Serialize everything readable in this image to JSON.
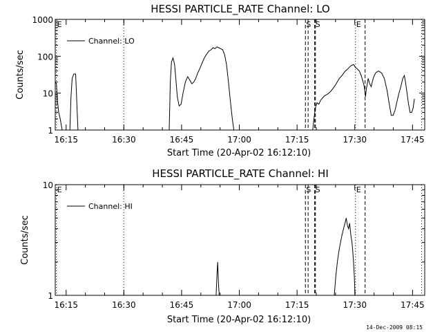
{
  "footer": {
    "stamp": "14-Dec-2009 08:15"
  },
  "chart_data": [
    {
      "type": "line",
      "title": "HESSI PARTICLE_RATE Channel: LO",
      "xlabel": "Start Time (20-Apr-02 16:12:10)",
      "ylabel": "Counts/sec",
      "yscale": "log",
      "ylim": [
        1,
        1000
      ],
      "xlim_minutes": [
        0,
        96
      ],
      "xticks": [
        {
          "label": "16:15",
          "t": 2.83
        },
        {
          "label": "16:30",
          "t": 17.83
        },
        {
          "label": "16:45",
          "t": 32.83
        },
        {
          "label": "17:00",
          "t": 47.83
        },
        {
          "label": "17:15",
          "t": 62.83
        },
        {
          "label": "17:30",
          "t": 77.83
        },
        {
          "label": "17:45",
          "t": 92.83
        }
      ],
      "yticks": [
        {
          "label": "1",
          "v": 1
        },
        {
          "label": "10",
          "v": 10
        },
        {
          "label": "100",
          "v": 100
        },
        {
          "label": "1000",
          "v": 1000
        }
      ],
      "legend": {
        "label": "Channel: LO",
        "position": "top-left"
      },
      "markers": [
        {
          "label": "E",
          "t": 0.3,
          "style": "dotted",
          "text": true
        },
        {
          "label": "",
          "t": 17.8,
          "style": "dotted",
          "text": false
        },
        {
          "label": "S",
          "t": 65.0,
          "style": "dashed",
          "text": true
        },
        {
          "label": "",
          "t": 65.7,
          "style": "dashed",
          "text": false
        },
        {
          "label": "S",
          "t": 67.4,
          "style": "dashed",
          "text": true
        },
        {
          "label": "",
          "t": 67.6,
          "style": "dashed",
          "text": false
        },
        {
          "label": "E",
          "t": 78.0,
          "style": "dotted",
          "text": true
        },
        {
          "label": "",
          "t": 80.5,
          "style": "dashed",
          "text": false
        },
        {
          "label": "",
          "t": 95.2,
          "style": "dotted",
          "text": false
        }
      ],
      "segments": [
        [
          [
            0,
            20
          ],
          [
            0.3,
            18
          ],
          [
            0.6,
            6
          ],
          [
            0.9,
            3
          ],
          [
            1.3,
            2
          ],
          [
            1.8,
            1
          ]
        ],
        [
          [
            3.8,
            1
          ],
          [
            4.1,
            8
          ],
          [
            4.4,
            25
          ],
          [
            4.8,
            33
          ],
          [
            5.3,
            33
          ],
          [
            5.5,
            10
          ],
          [
            5.7,
            3
          ],
          [
            5.9,
            1
          ]
        ],
        [
          [
            29.6,
            1
          ],
          [
            29.9,
            20
          ],
          [
            30.2,
            70
          ],
          [
            30.6,
            90
          ],
          [
            31.0,
            60
          ],
          [
            31.4,
            20
          ],
          [
            31.7,
            8
          ],
          [
            32.2,
            4.5
          ],
          [
            32.7,
            5
          ],
          [
            33.2,
            10
          ],
          [
            33.8,
            20
          ],
          [
            34.4,
            28
          ],
          [
            35.0,
            22
          ],
          [
            35.5,
            18
          ],
          [
            36.0,
            20
          ],
          [
            36.5,
            25
          ],
          [
            37.0,
            35
          ],
          [
            37.5,
            45
          ],
          [
            38.0,
            60
          ],
          [
            38.5,
            80
          ],
          [
            39.0,
            100
          ],
          [
            39.5,
            120
          ],
          [
            40.0,
            140
          ],
          [
            40.5,
            150
          ],
          [
            41.0,
            170
          ],
          [
            41.5,
            160
          ],
          [
            42.0,
            180
          ],
          [
            42.5,
            170
          ],
          [
            43.0,
            160
          ],
          [
            43.5,
            150
          ],
          [
            44.0,
            110
          ],
          [
            44.5,
            60
          ],
          [
            45.0,
            20
          ],
          [
            45.5,
            6
          ],
          [
            46.0,
            2
          ],
          [
            46.4,
            1
          ]
        ],
        [
          [
            66.9,
            1
          ],
          [
            67.2,
            2
          ],
          [
            67.6,
            4
          ],
          [
            68.0,
            5.5
          ],
          [
            68.5,
            5
          ],
          [
            69.0,
            6.5
          ],
          [
            69.5,
            7.5
          ],
          [
            70.0,
            8.5
          ],
          [
            70.8,
            9.5
          ],
          [
            71.5,
            11
          ],
          [
            72.3,
            14
          ],
          [
            73.0,
            18
          ],
          [
            73.8,
            25
          ],
          [
            74.5,
            30
          ],
          [
            75.2,
            38
          ],
          [
            76.0,
            45
          ],
          [
            76.8,
            55
          ],
          [
            77.5,
            60
          ],
          [
            78.0,
            50
          ],
          [
            78.5,
            45
          ],
          [
            79.0,
            40
          ],
          [
            79.5,
            30
          ],
          [
            80.0,
            20
          ],
          [
            80.3,
            15
          ],
          [
            80.6,
            8
          ],
          [
            80.9,
            14
          ],
          [
            81.3,
            25
          ],
          [
            81.7,
            18
          ],
          [
            82.1,
            15
          ],
          [
            82.6,
            25
          ],
          [
            83.2,
            35
          ],
          [
            84.0,
            40
          ],
          [
            84.8,
            35
          ],
          [
            85.5,
            25
          ],
          [
            86.2,
            12
          ],
          [
            86.8,
            5
          ],
          [
            87.3,
            2.5
          ],
          [
            87.8,
            2.5
          ],
          [
            88.3,
            3.5
          ],
          [
            88.8,
            6
          ],
          [
            89.3,
            10
          ],
          [
            89.8,
            15
          ],
          [
            90.3,
            25
          ],
          [
            90.7,
            30
          ],
          [
            91.0,
            20
          ],
          [
            91.4,
            10
          ],
          [
            91.8,
            5
          ],
          [
            92.2,
            3
          ],
          [
            92.6,
            3
          ],
          [
            93.0,
            4
          ],
          [
            93.3,
            7
          ]
        ]
      ]
    },
    {
      "type": "line",
      "title": "HESSI PARTICLE_RATE Channel: HI",
      "xlabel": "Start Time (20-Apr-02 16:12:10)",
      "ylabel": "Counts/sec",
      "yscale": "log",
      "ylim": [
        1,
        10
      ],
      "xlim_minutes": [
        0,
        96
      ],
      "xticks": [
        {
          "label": "16:15",
          "t": 2.83
        },
        {
          "label": "16:30",
          "t": 17.83
        },
        {
          "label": "16:45",
          "t": 32.83
        },
        {
          "label": "17:00",
          "t": 47.83
        },
        {
          "label": "17:15",
          "t": 62.83
        },
        {
          "label": "17:30",
          "t": 77.83
        },
        {
          "label": "17:45",
          "t": 92.83
        }
      ],
      "yticks": [
        {
          "label": "1",
          "v": 1
        },
        {
          "label": "10",
          "v": 10
        }
      ],
      "legend": {
        "label": "Channel: HI",
        "position": "top-left"
      },
      "markers": [
        {
          "label": "E",
          "t": 0.3,
          "style": "dotted",
          "text": true
        },
        {
          "label": "",
          "t": 17.8,
          "style": "dotted",
          "text": false
        },
        {
          "label": "S",
          "t": 65.0,
          "style": "dashed",
          "text": true
        },
        {
          "label": "",
          "t": 65.7,
          "style": "dashed",
          "text": false
        },
        {
          "label": "S",
          "t": 67.4,
          "style": "dashed",
          "text": true
        },
        {
          "label": "",
          "t": 67.6,
          "style": "dashed",
          "text": false
        },
        {
          "label": "E",
          "t": 78.0,
          "style": "dotted",
          "text": true
        },
        {
          "label": "",
          "t": 80.5,
          "style": "dashed",
          "text": false
        },
        {
          "label": "",
          "t": 95.2,
          "style": "dotted",
          "text": false
        }
      ],
      "segments": [
        [
          [
            41.8,
            1
          ],
          [
            42.0,
            1.5
          ],
          [
            42.2,
            2
          ],
          [
            42.4,
            1.3
          ],
          [
            42.6,
            1
          ]
        ],
        [
          [
            72.5,
            1
          ],
          [
            72.9,
            1.5
          ],
          [
            73.3,
            2
          ],
          [
            73.7,
            2.5
          ],
          [
            74.1,
            3
          ],
          [
            74.5,
            3.5
          ],
          [
            74.9,
            4
          ],
          [
            75.3,
            4.5
          ],
          [
            75.6,
            5
          ],
          [
            75.9,
            4.3
          ],
          [
            76.2,
            4
          ],
          [
            76.5,
            4.5
          ],
          [
            76.8,
            3.5
          ],
          [
            77.1,
            3
          ],
          [
            77.3,
            2.5
          ],
          [
            77.5,
            2
          ],
          [
            77.7,
            1.5
          ],
          [
            77.9,
            1
          ]
        ]
      ]
    }
  ]
}
